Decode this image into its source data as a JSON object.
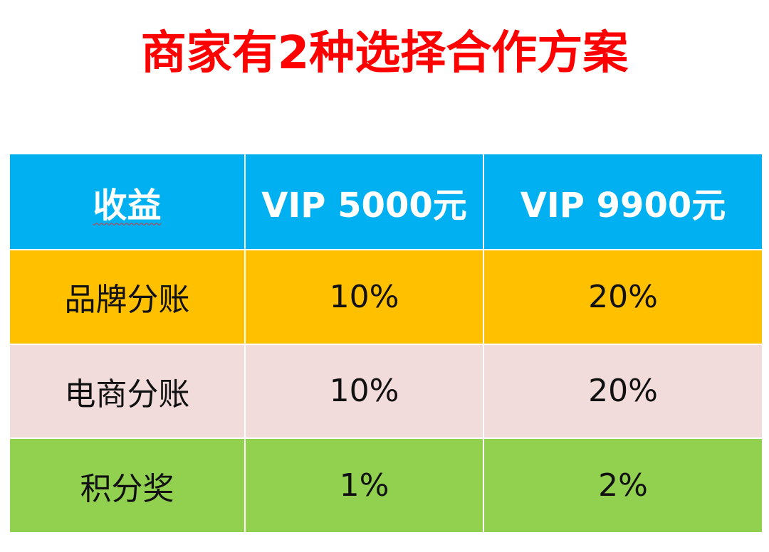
{
  "header": {
    "title": "商家有2种选择合作方案"
  },
  "table": {
    "columns": [
      "收益",
      "VIP 5000元",
      "VIP 9900元"
    ],
    "rows": [
      [
        "品牌分账",
        "10%",
        "20%"
      ],
      [
        "电商分账",
        "10%",
        "20%"
      ],
      [
        "积分奖",
        "1%",
        "2%"
      ]
    ]
  }
}
